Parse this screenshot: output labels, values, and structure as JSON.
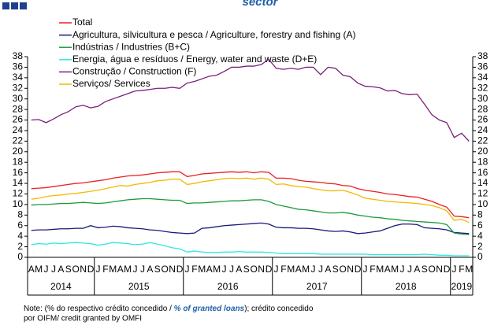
{
  "chart_data": {
    "type": "line",
    "title": "sector",
    "categories": [
      "A",
      "M",
      "J",
      "J",
      "A",
      "S",
      "O",
      "N",
      "D",
      "J",
      "F",
      "M",
      "A",
      "M",
      "J",
      "J",
      "A",
      "S",
      "O",
      "N",
      "D",
      "J",
      "F",
      "M",
      "A",
      "M",
      "J",
      "J",
      "A",
      "S",
      "O",
      "N",
      "D",
      "J",
      "F",
      "M",
      "A",
      "M",
      "J",
      "J",
      "A",
      "S",
      "O",
      "N",
      "D",
      "J",
      "F",
      "M",
      "A",
      "M",
      "J",
      "J",
      "A",
      "S",
      "O",
      "N",
      "D",
      "J",
      "F",
      "M"
    ],
    "years": [
      "2014",
      "2015",
      "2016",
      "2017",
      "2018",
      "2019"
    ],
    "ylim": [
      0,
      38
    ],
    "yticks": [
      0,
      2,
      4,
      6,
      8,
      10,
      12,
      14,
      16,
      18,
      20,
      22,
      24,
      26,
      28,
      30,
      32,
      34,
      36,
      38
    ],
    "series": [
      {
        "name": "Total",
        "color": "#e8201f",
        "values": [
          13.0,
          13.1,
          13.2,
          13.4,
          13.6,
          13.8,
          14.0,
          14.1,
          14.3,
          14.5,
          14.7,
          15.0,
          15.2,
          15.4,
          15.5,
          15.6,
          15.8,
          16.0,
          16.1,
          16.2,
          16.2,
          15.3,
          15.5,
          15.8,
          15.9,
          16.0,
          16.1,
          16.2,
          16.1,
          16.2,
          16.0,
          16.2,
          16.1,
          15.0,
          15.0,
          14.9,
          14.6,
          14.4,
          14.3,
          14.2,
          14.0,
          13.9,
          13.6,
          13.5,
          13.0,
          12.7,
          12.5,
          12.3,
          12.0,
          11.9,
          11.7,
          11.5,
          11.4,
          11.0,
          10.6,
          10.0,
          9.5,
          7.8,
          7.7,
          7.5
        ]
      },
      {
        "name": "Agricultura, silvicultura e pesca / Agriculture, forestry and fishing (A)",
        "color": "#1a1a7a",
        "values": [
          5.1,
          5.2,
          5.2,
          5.3,
          5.4,
          5.4,
          5.5,
          5.5,
          6.0,
          5.6,
          5.7,
          5.9,
          5.8,
          5.6,
          5.5,
          5.4,
          5.2,
          5.1,
          4.9,
          4.7,
          4.6,
          4.5,
          4.6,
          5.5,
          5.6,
          5.8,
          6.0,
          6.1,
          6.2,
          6.3,
          6.4,
          6.5,
          6.3,
          5.7,
          5.6,
          5.6,
          5.5,
          5.5,
          5.4,
          5.2,
          5.0,
          4.9,
          5.0,
          4.8,
          4.5,
          4.6,
          4.8,
          5.0,
          5.5,
          6.0,
          6.3,
          6.3,
          6.2,
          5.6,
          5.5,
          5.4,
          5.2,
          4.7,
          4.6,
          4.5
        ]
      },
      {
        "name": "Indústrias / Industries (B+C)",
        "color": "#1e9a3c",
        "values": [
          9.9,
          10.0,
          10.0,
          10.1,
          10.2,
          10.2,
          10.3,
          10.4,
          10.3,
          10.2,
          10.3,
          10.5,
          10.7,
          10.9,
          11.0,
          11.1,
          11.1,
          11.0,
          10.9,
          10.8,
          10.8,
          10.2,
          10.3,
          10.3,
          10.4,
          10.5,
          10.6,
          10.7,
          10.7,
          10.8,
          10.9,
          10.9,
          10.6,
          10.0,
          9.7,
          9.4,
          9.1,
          9.0,
          8.8,
          8.6,
          8.4,
          8.4,
          8.5,
          8.3,
          8.0,
          7.8,
          7.6,
          7.5,
          7.3,
          7.2,
          7.0,
          6.9,
          6.8,
          6.7,
          6.6,
          6.5,
          6.2,
          4.6,
          4.4,
          4.3
        ]
      },
      {
        "name": "Energia, água e resíduos / Energy, water and waste (D+E)",
        "color": "#2ee8e0",
        "values": [
          2.4,
          2.6,
          2.5,
          2.7,
          2.6,
          2.7,
          2.8,
          2.7,
          2.6,
          2.3,
          2.5,
          2.8,
          2.7,
          2.6,
          2.4,
          2.5,
          2.8,
          2.5,
          2.2,
          1.8,
          1.6,
          1.0,
          1.2,
          1.0,
          0.9,
          0.9,
          1.0,
          1.0,
          1.1,
          1.0,
          1.0,
          1.0,
          0.9,
          0.8,
          0.7,
          0.7,
          0.7,
          0.7,
          0.7,
          0.6,
          0.6,
          0.6,
          0.6,
          0.6,
          0.6,
          0.6,
          0.5,
          0.5,
          0.5,
          0.5,
          0.5,
          0.5,
          0.5,
          0.6,
          0.5,
          0.4,
          0.4,
          0.3,
          0.3,
          0.3
        ]
      },
      {
        "name": "Construção / Construction  (F)",
        "color": "#7b1f7a",
        "values": [
          26.0,
          26.1,
          25.5,
          26.2,
          27.0,
          27.6,
          28.5,
          28.8,
          28.3,
          28.6,
          29.5,
          30.0,
          30.5,
          31.0,
          31.5,
          31.6,
          31.8,
          32.0,
          32.0,
          32.2,
          32.0,
          33.0,
          33.3,
          33.8,
          34.3,
          34.5,
          35.2,
          36.0,
          36.0,
          36.2,
          36.2,
          36.5,
          37.5,
          35.8,
          35.6,
          35.8,
          35.6,
          36.0,
          36.0,
          34.6,
          36.0,
          35.8,
          34.5,
          34.2,
          33.0,
          32.4,
          32.3,
          32.1,
          31.5,
          31.6,
          31.0,
          30.8,
          30.9,
          29.0,
          27.0,
          26.0,
          25.5,
          22.7,
          23.5,
          22.0
        ]
      },
      {
        "name": "Serviços/ Services",
        "color": "#f5b800",
        "values": [
          11.0,
          11.2,
          11.5,
          11.7,
          11.8,
          12.0,
          12.1,
          12.3,
          12.5,
          12.7,
          13.0,
          13.3,
          13.6,
          13.5,
          13.8,
          14.0,
          14.2,
          14.5,
          14.6,
          14.8,
          14.8,
          13.8,
          14.0,
          14.3,
          14.5,
          14.7,
          14.9,
          15.0,
          14.9,
          15.0,
          14.8,
          15.0,
          14.8,
          13.8,
          13.9,
          13.6,
          13.4,
          13.3,
          13.0,
          12.8,
          12.6,
          12.6,
          12.7,
          12.3,
          11.8,
          11.2,
          11.0,
          10.8,
          10.6,
          10.5,
          10.4,
          10.3,
          10.2,
          10.0,
          9.8,
          9.4,
          8.8,
          7.0,
          7.2,
          6.6
        ]
      }
    ]
  },
  "note": [
    "Note: (% do respectivo crédito concedido / ",
    "% of granted loans",
    "); crédito concedido",
    "por OIFM/ credit granted by OMFI"
  ]
}
